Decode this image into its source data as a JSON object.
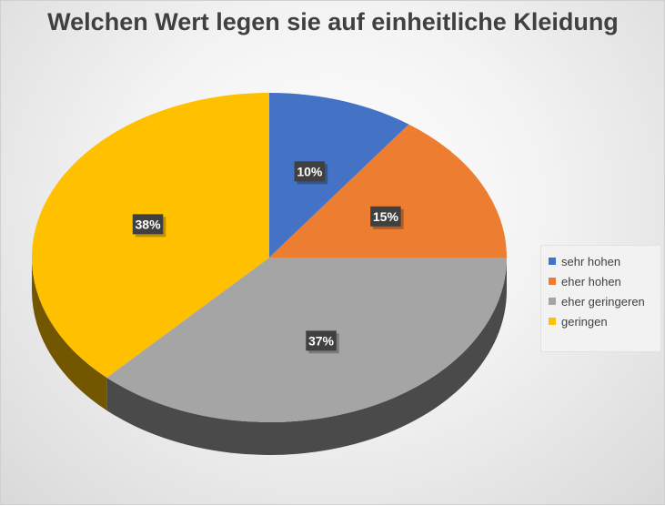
{
  "chart_data": {
    "type": "pie",
    "title": "Welchen Wert legen sie auf einheitliche Kleidung",
    "categories": [
      "sehr hohen",
      "eher hohen",
      "eher geringeren",
      "geringen"
    ],
    "values": [
      10,
      15,
      37,
      38
    ],
    "data_labels": [
      "10%",
      "15%",
      "37%",
      "38%"
    ],
    "colors": [
      "#4472C4",
      "#ED7D31",
      "#A5A5A5",
      "#FFC000"
    ],
    "legend_position": "right",
    "style": "3d"
  }
}
